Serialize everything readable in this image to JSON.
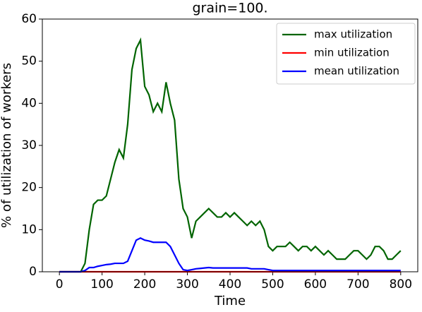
{
  "chart_data": {
    "type": "line",
    "title": "grain=100.",
    "x_label": "Time",
    "y_label": "% of utilization of workers",
    "x": [
      0,
      10,
      20,
      30,
      40,
      50,
      60,
      70,
      80,
      90,
      100,
      110,
      120,
      130,
      140,
      150,
      160,
      170,
      180,
      190,
      200,
      210,
      220,
      230,
      240,
      250,
      260,
      270,
      280,
      290,
      300,
      310,
      320,
      330,
      340,
      350,
      360,
      370,
      380,
      390,
      400,
      410,
      420,
      430,
      440,
      450,
      460,
      470,
      480,
      490,
      500,
      510,
      520,
      530,
      540,
      550,
      560,
      570,
      580,
      590,
      600,
      610,
      620,
      630,
      640,
      650,
      660,
      670,
      680,
      690,
      700,
      710,
      720,
      730,
      740,
      750,
      760,
      770,
      780,
      790,
      800
    ],
    "series": [
      {
        "name": "max utilization",
        "color": "#006400",
        "values": [
          0,
          0,
          0,
          0,
          0,
          0,
          2,
          10,
          16,
          17,
          17,
          18,
          22,
          26,
          29,
          27,
          35,
          48,
          53,
          55,
          44,
          42,
          38,
          40,
          38,
          45,
          40,
          36,
          22,
          15,
          13,
          8,
          12,
          13,
          14,
          15,
          14,
          13,
          13,
          14,
          13,
          14,
          13,
          12,
          11,
          12,
          11,
          12,
          10,
          6,
          5,
          6,
          6,
          6,
          7,
          6,
          5,
          6,
          6,
          5,
          6,
          5,
          4,
          5,
          4,
          3,
          3,
          3,
          4,
          5,
          5,
          4,
          3,
          4,
          6,
          6,
          5,
          3,
          3,
          4,
          5
        ]
      },
      {
        "name": "min utilization",
        "color": "#ff0000",
        "values": [
          0,
          0,
          0,
          0,
          0,
          0,
          0,
          0,
          0,
          0,
          0,
          0,
          0,
          0,
          0,
          0,
          0,
          0,
          0,
          0,
          0,
          0,
          0,
          0,
          0,
          0,
          0,
          0,
          0,
          0,
          0,
          0,
          0,
          0,
          0,
          0,
          0,
          0,
          0,
          0,
          0,
          0,
          0,
          0,
          0,
          0,
          0,
          0,
          0,
          0,
          0,
          0,
          0,
          0,
          0,
          0,
          0,
          0,
          0,
          0,
          0,
          0,
          0,
          0,
          0,
          0,
          0,
          0,
          0,
          0,
          0,
          0,
          0,
          0,
          0,
          0,
          0,
          0,
          0,
          0,
          0
        ]
      },
      {
        "name": "mean utilization",
        "color": "#0000ff",
        "values": [
          0,
          0,
          0,
          0,
          0,
          0,
          0.3,
          1,
          1,
          1.3,
          1.5,
          1.7,
          1.8,
          2,
          2,
          2,
          2.5,
          5,
          7.5,
          8,
          7.5,
          7.3,
          7,
          7,
          7,
          7,
          6,
          4,
          2,
          0.5,
          0.3,
          0.5,
          0.7,
          0.8,
          0.9,
          1,
          0.9,
          0.9,
          0.9,
          0.9,
          0.9,
          0.9,
          0.9,
          0.9,
          0.9,
          0.7,
          0.7,
          0.7,
          0.7,
          0.5,
          0.3,
          0.3,
          0.3,
          0.3,
          0.3,
          0.3,
          0.3,
          0.3,
          0.3,
          0.3,
          0.3,
          0.3,
          0.3,
          0.3,
          0.3,
          0.3,
          0.3,
          0.3,
          0.3,
          0.3,
          0.3,
          0.3,
          0.3,
          0.3,
          0.3,
          0.3,
          0.3,
          0.3,
          0.3,
          0.3,
          0.3
        ]
      }
    ],
    "xlim": [
      -40,
      840
    ],
    "xticks": [
      0,
      100,
      200,
      300,
      400,
      500,
      600,
      700,
      800
    ],
    "ylim": [
      0,
      60
    ],
    "yticks": [
      0,
      10,
      20,
      30,
      40,
      50,
      60
    ],
    "legend": "upper right"
  }
}
